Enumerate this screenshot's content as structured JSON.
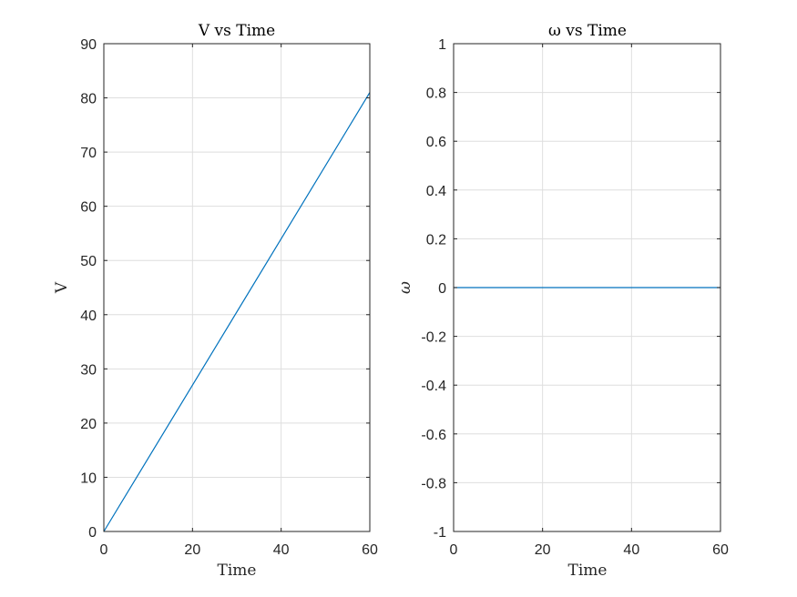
{
  "chart_data": [
    {
      "type": "line",
      "title": "V vs Time",
      "xlabel": "Time",
      "ylabel": "V",
      "xlim": [
        0,
        60
      ],
      "ylim": [
        0,
        90
      ],
      "xticks": [
        0,
        20,
        40,
        60
      ],
      "yticks": [
        0,
        10,
        20,
        30,
        40,
        50,
        60,
        70,
        80,
        90
      ],
      "xtick_labels": [
        "0",
        "20",
        "40",
        "60"
      ],
      "ytick_labels": [
        "0",
        "10",
        "20",
        "30",
        "40",
        "50",
        "60",
        "70",
        "80",
        "90"
      ],
      "grid": true,
      "series": [
        {
          "color": "#0072BD",
          "x": [
            0,
            60
          ],
          "y": [
            0,
            81
          ]
        }
      ]
    },
    {
      "type": "line",
      "title": "ω vs Time",
      "xlabel": "Time",
      "ylabel": "ω",
      "xlim": [
        0,
        60
      ],
      "ylim": [
        -1,
        1
      ],
      "xticks": [
        0,
        20,
        40,
        60
      ],
      "yticks": [
        -1,
        -0.8,
        -0.6,
        -0.4,
        -0.2,
        0,
        0.2,
        0.4,
        0.6,
        0.8,
        1
      ],
      "xtick_labels": [
        "0",
        "20",
        "40",
        "60"
      ],
      "ytick_labels": [
        "-1",
        "-0.8",
        "-0.6",
        "-0.4",
        "-0.2",
        "0",
        "0.2",
        "0.4",
        "0.6",
        "0.8",
        "1"
      ],
      "grid": true,
      "series": [
        {
          "color": "#0072BD",
          "x": [
            0,
            60
          ],
          "y": [
            0,
            0
          ]
        }
      ]
    }
  ]
}
